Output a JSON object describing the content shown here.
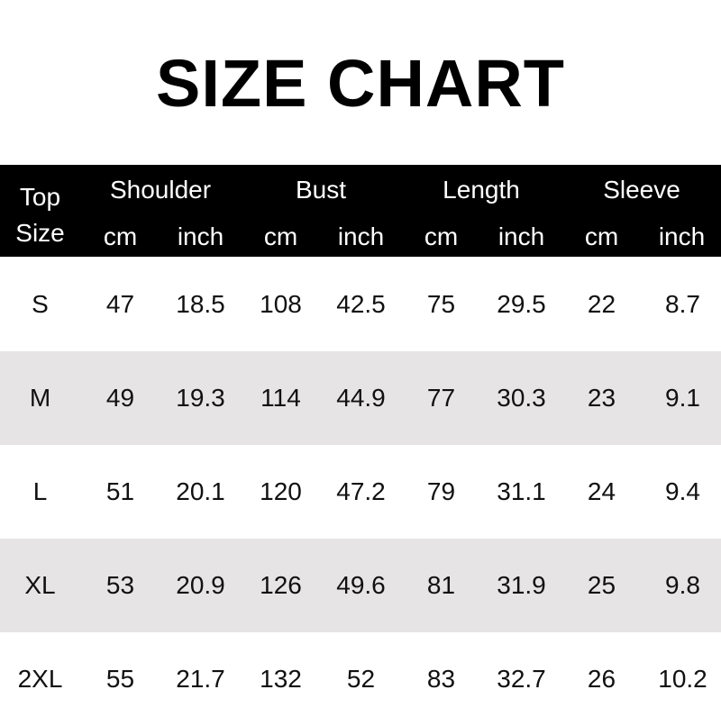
{
  "title": "SIZE CHART",
  "header": {
    "size_label_line1": "Top",
    "size_label_line2": "Size",
    "groups": [
      "Shoulder",
      "Bust",
      "Length",
      "Sleeve"
    ],
    "units": [
      "cm",
      "inch",
      "cm",
      "inch",
      "cm",
      "inch",
      "cm",
      "inch"
    ]
  },
  "colors": {
    "header_bg": "#000000",
    "alt_row_bg": "#e6e4e4"
  },
  "rows": [
    [
      "S",
      "47",
      "18.5",
      "108",
      "42.5",
      "75",
      "29.5",
      "22",
      "8.7"
    ],
    [
      "M",
      "49",
      "19.3",
      "114",
      "44.9",
      "77",
      "30.3",
      "23",
      "9.1"
    ],
    [
      "L",
      "51",
      "20.1",
      "120",
      "47.2",
      "79",
      "31.1",
      "24",
      "9.4"
    ],
    [
      "XL",
      "53",
      "20.9",
      "126",
      "49.6",
      "81",
      "31.9",
      "25",
      "9.8"
    ],
    [
      "2XL",
      "55",
      "21.7",
      "132",
      "52",
      "83",
      "32.7",
      "26",
      "10.2"
    ]
  ]
}
